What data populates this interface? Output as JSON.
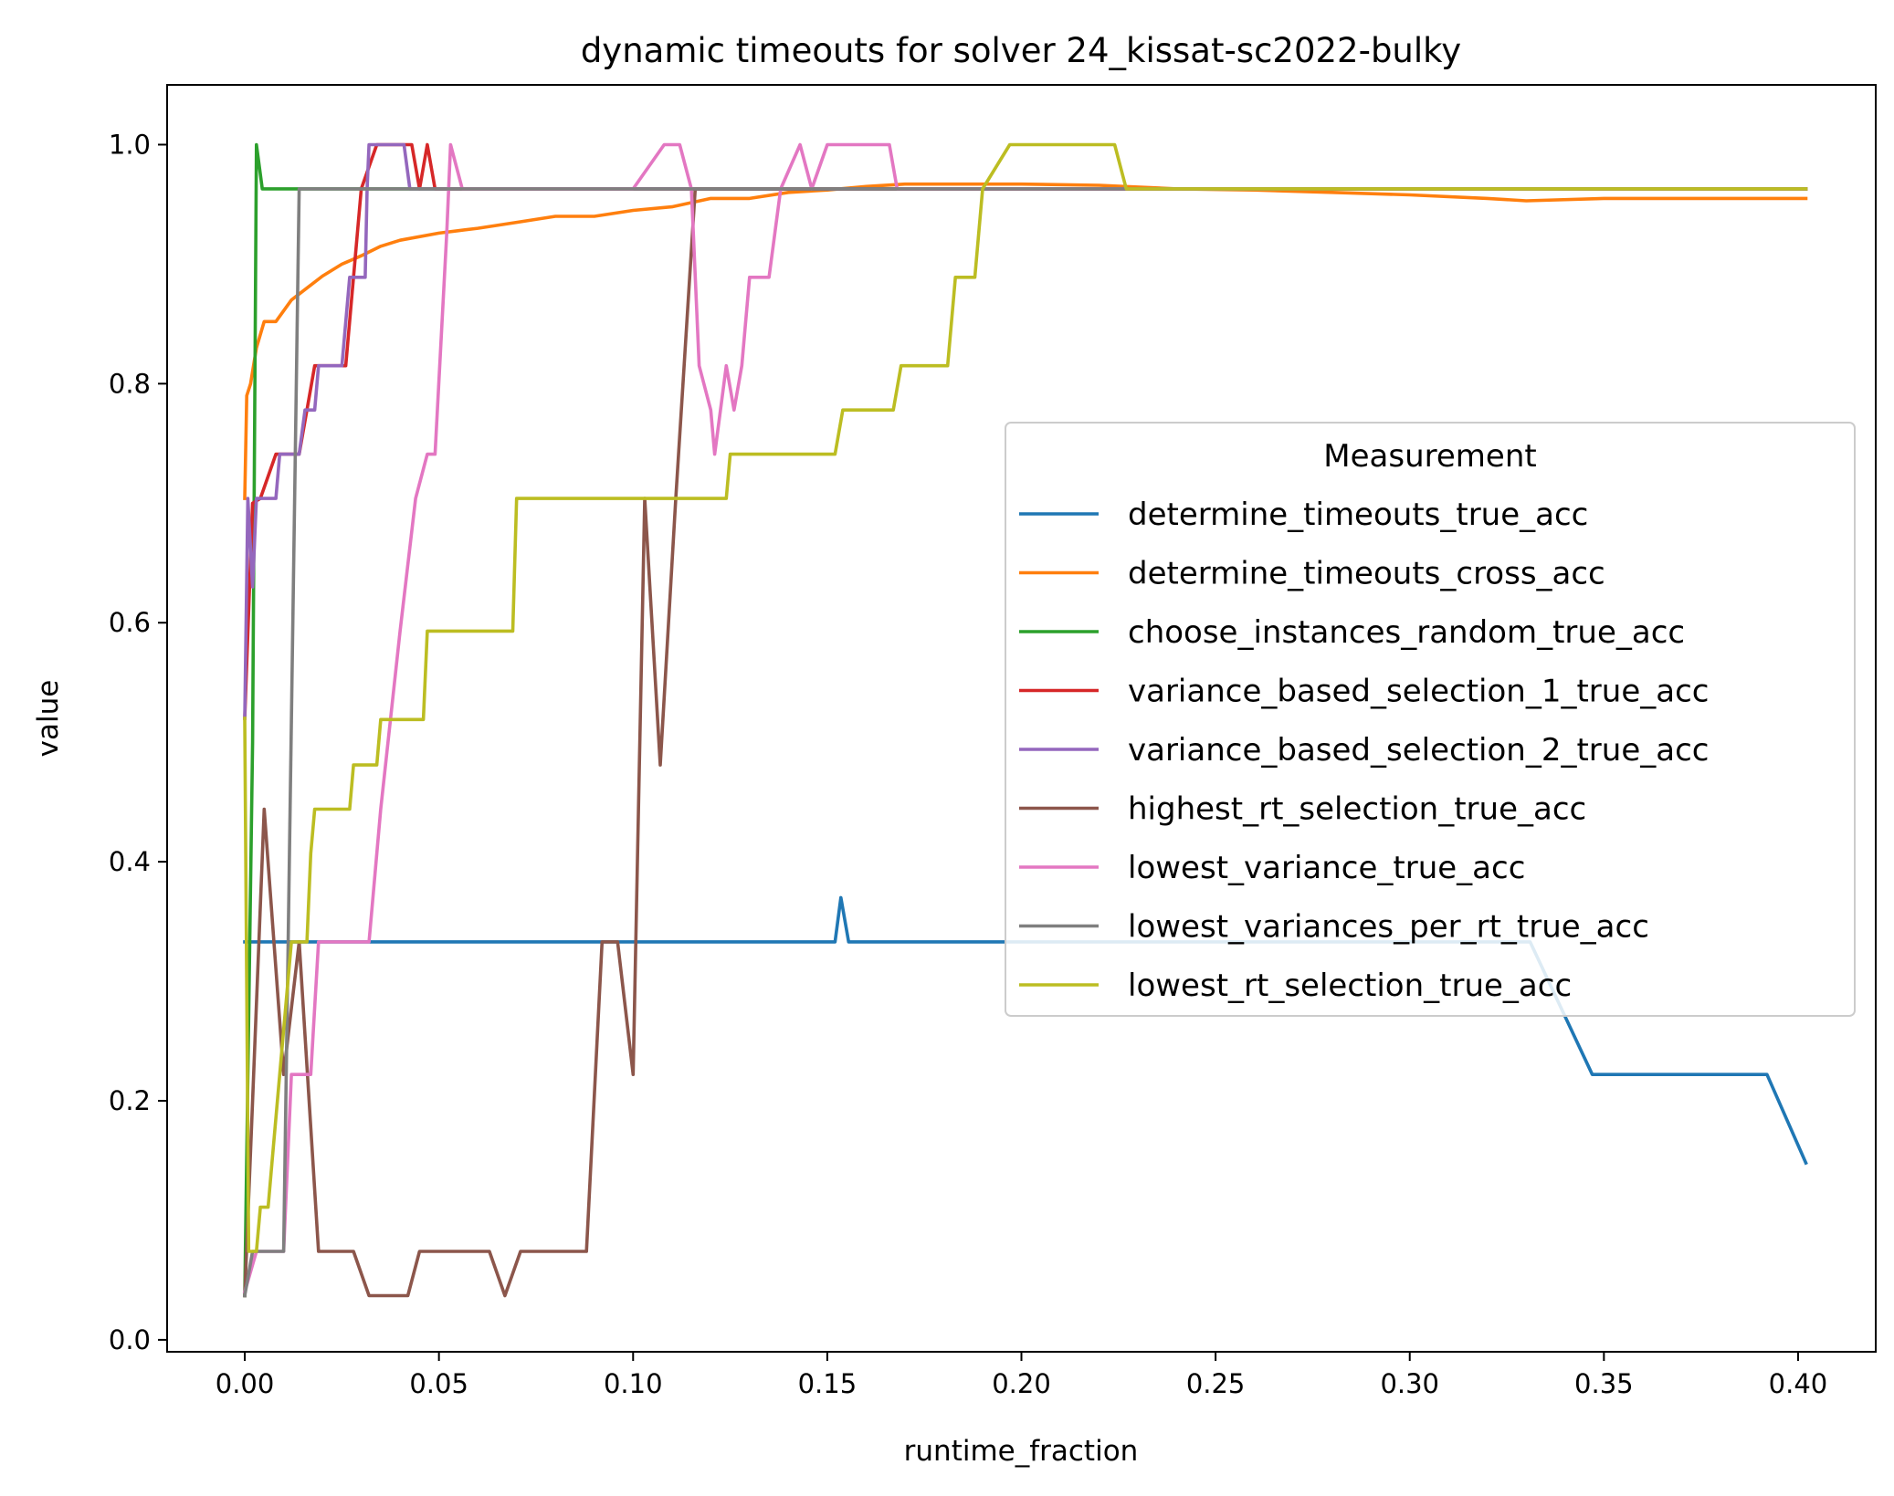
{
  "chart_data": {
    "type": "line",
    "title": "dynamic timeouts for solver 24_kissat-sc2022-bulky",
    "xlabel": "runtime_fraction",
    "ylabel": "value",
    "xlim": [
      -0.02,
      0.42
    ],
    "ylim": [
      -0.01,
      1.05
    ],
    "xticks": [
      "0.00",
      "0.05",
      "0.10",
      "0.15",
      "0.20",
      "0.25",
      "0.30",
      "0.35",
      "0.40"
    ],
    "xtick_values": [
      0,
      0.05,
      0.1,
      0.15,
      0.2,
      0.25,
      0.3,
      0.35,
      0.4
    ],
    "yticks": [
      "0.0",
      "0.2",
      "0.4",
      "0.6",
      "0.8",
      "1.0"
    ],
    "ytick_values": [
      0,
      0.2,
      0.4,
      0.6,
      0.8,
      1.0
    ],
    "grid": false,
    "legend": {
      "title": "Measurement",
      "position": "center-right"
    },
    "series": [
      {
        "name": "determine_timeouts_true_acc",
        "color": "#1f77b4",
        "points": [
          [
            0.0,
            0.333
          ],
          [
            0.05,
            0.333
          ],
          [
            0.1,
            0.333
          ],
          [
            0.152,
            0.333
          ],
          [
            0.1535,
            0.37
          ],
          [
            0.1555,
            0.333
          ],
          [
            0.2,
            0.333
          ],
          [
            0.25,
            0.333
          ],
          [
            0.3,
            0.333
          ],
          [
            0.331,
            0.333
          ],
          [
            0.347,
            0.222
          ],
          [
            0.392,
            0.222
          ],
          [
            0.402,
            0.148
          ]
        ]
      },
      {
        "name": "determine_timeouts_cross_acc",
        "color": "#ff7f0e",
        "points": [
          [
            0.0,
            0.704
          ],
          [
            0.0005,
            0.79
          ],
          [
            0.0015,
            0.8
          ],
          [
            0.003,
            0.83
          ],
          [
            0.005,
            0.852
          ],
          [
            0.008,
            0.852
          ],
          [
            0.012,
            0.87
          ],
          [
            0.016,
            0.88
          ],
          [
            0.02,
            0.89
          ],
          [
            0.025,
            0.9
          ],
          [
            0.03,
            0.907
          ],
          [
            0.035,
            0.915
          ],
          [
            0.04,
            0.92
          ],
          [
            0.05,
            0.926
          ],
          [
            0.06,
            0.93
          ],
          [
            0.07,
            0.935
          ],
          [
            0.08,
            0.94
          ],
          [
            0.09,
            0.94
          ],
          [
            0.1,
            0.945
          ],
          [
            0.11,
            0.948
          ],
          [
            0.12,
            0.955
          ],
          [
            0.13,
            0.955
          ],
          [
            0.14,
            0.96
          ],
          [
            0.15,
            0.962
          ],
          [
            0.16,
            0.965
          ],
          [
            0.17,
            0.967
          ],
          [
            0.18,
            0.967
          ],
          [
            0.2,
            0.967
          ],
          [
            0.22,
            0.966
          ],
          [
            0.24,
            0.963
          ],
          [
            0.26,
            0.962
          ],
          [
            0.28,
            0.96
          ],
          [
            0.3,
            0.958
          ],
          [
            0.32,
            0.955
          ],
          [
            0.33,
            0.953
          ],
          [
            0.35,
            0.955
          ],
          [
            0.402,
            0.955
          ]
        ]
      },
      {
        "name": "choose_instances_random_true_acc",
        "color": "#2ca02c",
        "points": [
          [
            0.0,
            0.037
          ],
          [
            0.002,
            0.5
          ],
          [
            0.003,
            1.0
          ],
          [
            0.0045,
            0.963
          ],
          [
            0.01,
            0.963
          ],
          [
            0.05,
            0.963
          ],
          [
            0.1,
            0.963
          ],
          [
            0.2,
            0.963
          ],
          [
            0.3,
            0.963
          ],
          [
            0.402,
            0.963
          ]
        ]
      },
      {
        "name": "variance_based_selection_1_true_acc",
        "color": "#d62728",
        "points": [
          [
            0.0,
            0.52
          ],
          [
            0.002,
            0.7
          ],
          [
            0.004,
            0.704
          ],
          [
            0.008,
            0.741
          ],
          [
            0.014,
            0.741
          ],
          [
            0.016,
            0.778
          ],
          [
            0.018,
            0.815
          ],
          [
            0.026,
            0.815
          ],
          [
            0.028,
            0.889
          ],
          [
            0.03,
            0.963
          ],
          [
            0.034,
            1.0
          ],
          [
            0.043,
            1.0
          ],
          [
            0.045,
            0.963
          ],
          [
            0.047,
            1.0
          ],
          [
            0.049,
            0.963
          ],
          [
            0.05,
            0.963
          ],
          [
            0.1,
            0.963
          ],
          [
            0.2,
            0.963
          ],
          [
            0.3,
            0.963
          ],
          [
            0.402,
            0.963
          ]
        ]
      },
      {
        "name": "variance_based_selection_2_true_acc",
        "color": "#9467bd",
        "points": [
          [
            0.0,
            0.52
          ],
          [
            0.0008,
            0.704
          ],
          [
            0.002,
            0.63
          ],
          [
            0.003,
            0.704
          ],
          [
            0.008,
            0.704
          ],
          [
            0.009,
            0.741
          ],
          [
            0.014,
            0.741
          ],
          [
            0.0155,
            0.778
          ],
          [
            0.018,
            0.778
          ],
          [
            0.019,
            0.815
          ],
          [
            0.025,
            0.815
          ],
          [
            0.027,
            0.889
          ],
          [
            0.031,
            0.889
          ],
          [
            0.0315,
            0.963
          ],
          [
            0.032,
            1.0
          ],
          [
            0.041,
            1.0
          ],
          [
            0.0425,
            0.963
          ],
          [
            0.05,
            0.963
          ],
          [
            0.1,
            0.963
          ],
          [
            0.2,
            0.963
          ],
          [
            0.3,
            0.963
          ],
          [
            0.402,
            0.963
          ]
        ]
      },
      {
        "name": "highest_rt_selection_true_acc",
        "color": "#8c564b",
        "points": [
          [
            0.0,
            0.037
          ],
          [
            0.002,
            0.2
          ],
          [
            0.005,
            0.444
          ],
          [
            0.01,
            0.222
          ],
          [
            0.014,
            0.333
          ],
          [
            0.019,
            0.074
          ],
          [
            0.028,
            0.074
          ],
          [
            0.032,
            0.037
          ],
          [
            0.042,
            0.037
          ],
          [
            0.045,
            0.074
          ],
          [
            0.063,
            0.074
          ],
          [
            0.067,
            0.037
          ],
          [
            0.071,
            0.074
          ],
          [
            0.088,
            0.074
          ],
          [
            0.092,
            0.333
          ],
          [
            0.096,
            0.333
          ],
          [
            0.1,
            0.222
          ],
          [
            0.103,
            0.704
          ],
          [
            0.107,
            0.481
          ],
          [
            0.111,
            0.704
          ],
          [
            0.116,
            0.963
          ],
          [
            0.12,
            0.963
          ],
          [
            0.2,
            0.963
          ],
          [
            0.3,
            0.963
          ],
          [
            0.402,
            0.963
          ]
        ]
      },
      {
        "name": "lowest_variance_true_acc",
        "color": "#e377c2",
        "points": [
          [
            0.0,
            0.04
          ],
          [
            0.003,
            0.074
          ],
          [
            0.01,
            0.074
          ],
          [
            0.012,
            0.222
          ],
          [
            0.017,
            0.222
          ],
          [
            0.019,
            0.333
          ],
          [
            0.032,
            0.333
          ],
          [
            0.035,
            0.444
          ],
          [
            0.04,
            0.593
          ],
          [
            0.044,
            0.704
          ],
          [
            0.047,
            0.741
          ],
          [
            0.049,
            0.741
          ],
          [
            0.052,
            0.926
          ],
          [
            0.053,
            1.0
          ],
          [
            0.056,
            0.963
          ],
          [
            0.1,
            0.963
          ],
          [
            0.108,
            1.0
          ],
          [
            0.112,
            1.0
          ],
          [
            0.115,
            0.963
          ],
          [
            0.117,
            0.815
          ],
          [
            0.12,
            0.778
          ],
          [
            0.121,
            0.741
          ],
          [
            0.124,
            0.815
          ],
          [
            0.126,
            0.778
          ],
          [
            0.128,
            0.815
          ],
          [
            0.13,
            0.889
          ],
          [
            0.135,
            0.889
          ],
          [
            0.138,
            0.963
          ],
          [
            0.143,
            1.0
          ],
          [
            0.146,
            0.963
          ],
          [
            0.15,
            1.0
          ],
          [
            0.166,
            1.0
          ],
          [
            0.168,
            0.963
          ],
          [
            0.2,
            0.963
          ],
          [
            0.3,
            0.963
          ],
          [
            0.402,
            0.963
          ]
        ]
      },
      {
        "name": "lowest_variances_per_rt_true_acc",
        "color": "#7f7f7f",
        "points": [
          [
            0.0,
            0.037
          ],
          [
            0.002,
            0.074
          ],
          [
            0.01,
            0.074
          ],
          [
            0.014,
            0.963
          ],
          [
            0.05,
            0.963
          ],
          [
            0.1,
            0.963
          ],
          [
            0.2,
            0.963
          ],
          [
            0.3,
            0.963
          ],
          [
            0.402,
            0.963
          ]
        ]
      },
      {
        "name": "lowest_rt_selection_true_acc",
        "color": "#bcbd22",
        "points": [
          [
            0.0,
            0.52
          ],
          [
            0.001,
            0.074
          ],
          [
            0.003,
            0.074
          ],
          [
            0.004,
            0.111
          ],
          [
            0.006,
            0.111
          ],
          [
            0.007,
            0.148
          ],
          [
            0.009,
            0.222
          ],
          [
            0.012,
            0.333
          ],
          [
            0.016,
            0.333
          ],
          [
            0.017,
            0.407
          ],
          [
            0.018,
            0.444
          ],
          [
            0.027,
            0.444
          ],
          [
            0.028,
            0.481
          ],
          [
            0.034,
            0.481
          ],
          [
            0.035,
            0.519
          ],
          [
            0.046,
            0.519
          ],
          [
            0.047,
            0.593
          ],
          [
            0.069,
            0.593
          ],
          [
            0.07,
            0.704
          ],
          [
            0.124,
            0.704
          ],
          [
            0.125,
            0.741
          ],
          [
            0.152,
            0.741
          ],
          [
            0.154,
            0.778
          ],
          [
            0.167,
            0.778
          ],
          [
            0.169,
            0.815
          ],
          [
            0.181,
            0.815
          ],
          [
            0.183,
            0.889
          ],
          [
            0.188,
            0.889
          ],
          [
            0.19,
            0.963
          ],
          [
            0.197,
            1.0
          ],
          [
            0.224,
            1.0
          ],
          [
            0.227,
            0.963
          ],
          [
            0.25,
            0.963
          ],
          [
            0.3,
            0.963
          ],
          [
            0.402,
            0.963
          ]
        ]
      }
    ]
  }
}
